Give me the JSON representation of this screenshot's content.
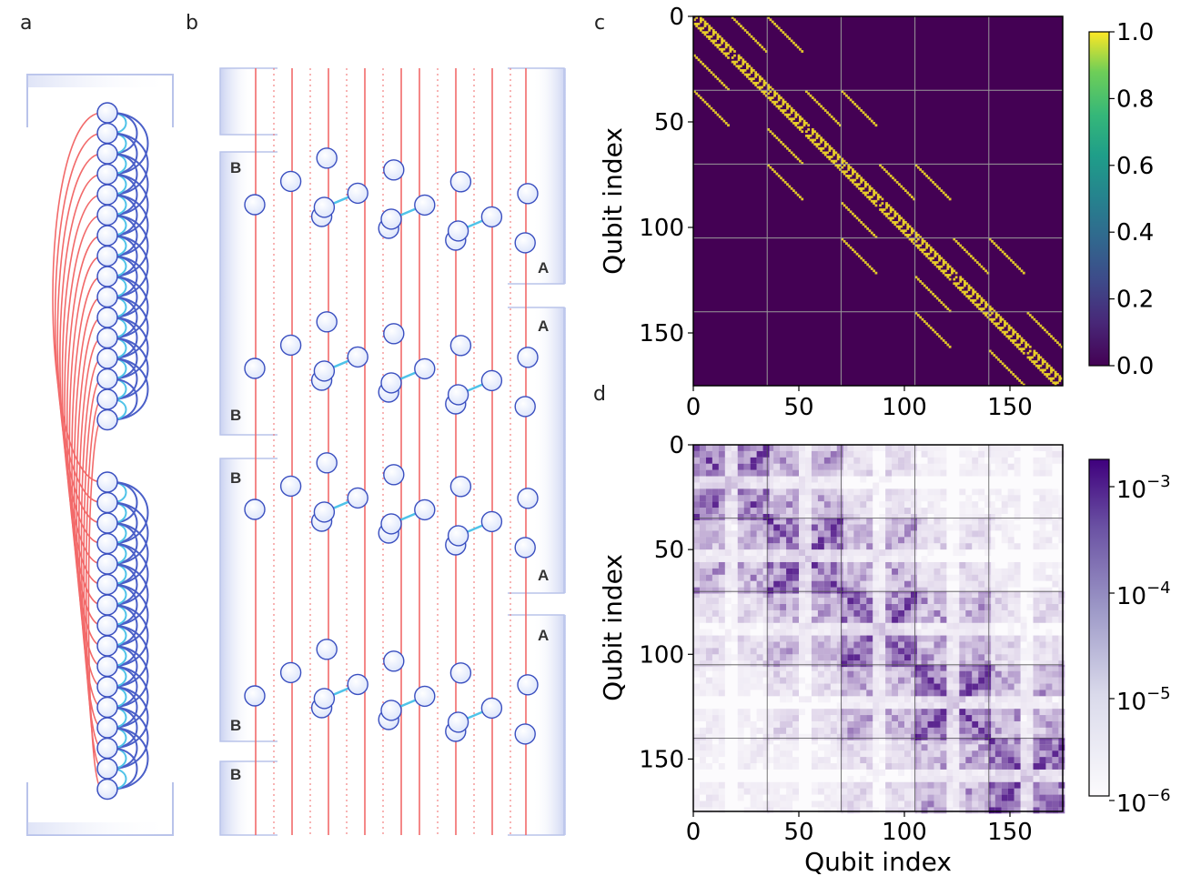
{
  "panels": {
    "a": {
      "label": "a"
    },
    "b": {
      "label": "b",
      "left_tags": [
        "B",
        "B",
        "B",
        "B",
        "B"
      ],
      "right_tags": [
        "A",
        "A",
        "A",
        "A"
      ]
    },
    "c": {
      "label": "c"
    },
    "d": {
      "label": "d"
    }
  },
  "colors": {
    "red_line": "#f26a6a",
    "blue_arc": "#4a5fc8",
    "cyan_link": "#4fc3e8",
    "node_fill": "#eef3ff",
    "node_stroke": "#3a4fc0",
    "viridis_low": "#440154",
    "viridis_high": "#fde725",
    "purple_max": "#3f007d"
  },
  "chart_data": [
    {
      "type": "heatmap",
      "panel": "c",
      "xlabel": "",
      "ylabel": "Qubit index",
      "xlim": [
        0,
        175
      ],
      "ylim": [
        175,
        0
      ],
      "xticks": [
        "0",
        "50",
        "100",
        "150"
      ],
      "yticks": [
        "0",
        "50",
        "100",
        "150"
      ],
      "grid_lines_at": [
        35,
        70,
        105,
        140
      ],
      "colorbar": {
        "min": 0.0,
        "max": 1.0,
        "ticks": [
          "0.0",
          "0.2",
          "0.4",
          "0.6",
          "0.8",
          "1.0"
        ],
        "colormap": "viridis"
      },
      "description_values": {
        "background": 0.0,
        "structure": 1.0
      }
    },
    {
      "type": "heatmap",
      "panel": "d",
      "xlabel": "Qubit index",
      "ylabel": "Qubit index",
      "xlim": [
        0,
        175
      ],
      "ylim": [
        175,
        0
      ],
      "xticks": [
        "0",
        "50",
        "100",
        "150"
      ],
      "yticks": [
        "0",
        "50",
        "100",
        "150"
      ],
      "grid_lines_at": [
        35,
        70,
        105,
        140
      ],
      "colorbar": {
        "scale": "log",
        "min": 1e-06,
        "max": 0.002,
        "ticks": [
          "10",
          "10",
          "10",
          "10"
        ],
        "tick_exponents": [
          "−3",
          "−4",
          "−5",
          "−6"
        ],
        "colormap": "Purples"
      }
    }
  ]
}
